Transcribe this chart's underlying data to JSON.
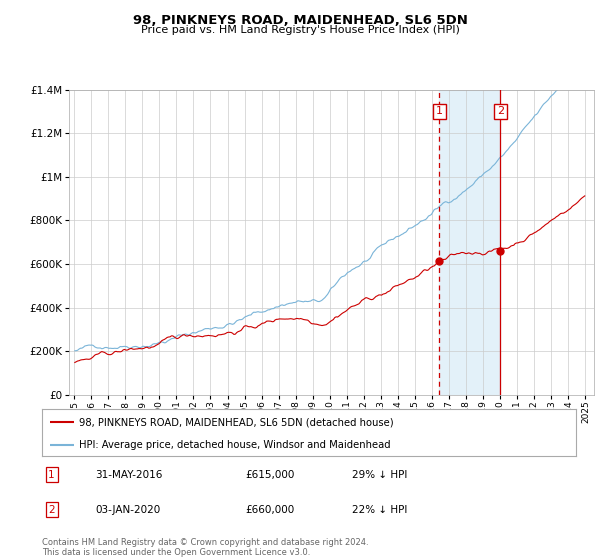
{
  "title": "98, PINKNEYS ROAD, MAIDENHEAD, SL6 5DN",
  "subtitle": "Price paid vs. HM Land Registry's House Price Index (HPI)",
  "footer": "Contains HM Land Registry data © Crown copyright and database right 2024.\nThis data is licensed under the Open Government Licence v3.0.",
  "legend_line1": "98, PINKNEYS ROAD, MAIDENHEAD, SL6 5DN (detached house)",
  "legend_line2": "HPI: Average price, detached house, Windsor and Maidenhead",
  "annotation1": {
    "label": "1",
    "date_str": "31-MAY-2016",
    "price": "£615,000",
    "note": "29% ↓ HPI"
  },
  "annotation2": {
    "label": "2",
    "date_str": "03-JAN-2020",
    "price": "£660,000",
    "note": "22% ↓ HPI"
  },
  "sale1_x": 2016.42,
  "sale1_y": 615000,
  "sale2_x": 2020.01,
  "sale2_y": 660000,
  "hpi_color": "#7ab4d8",
  "sale_color": "#cc0000",
  "annot_box_color": "#cc0000",
  "shade_color": "#ddeef8",
  "ylim": [
    0,
    1400000
  ],
  "ytick_max": 1200000,
  "xlim": [
    1994.7,
    2025.5
  ],
  "xticks": [
    1995,
    1996,
    1997,
    1998,
    1999,
    2000,
    2001,
    2002,
    2003,
    2004,
    2005,
    2006,
    2007,
    2008,
    2009,
    2010,
    2011,
    2012,
    2013,
    2014,
    2015,
    2016,
    2017,
    2018,
    2019,
    2020,
    2021,
    2022,
    2023,
    2024,
    2025
  ]
}
